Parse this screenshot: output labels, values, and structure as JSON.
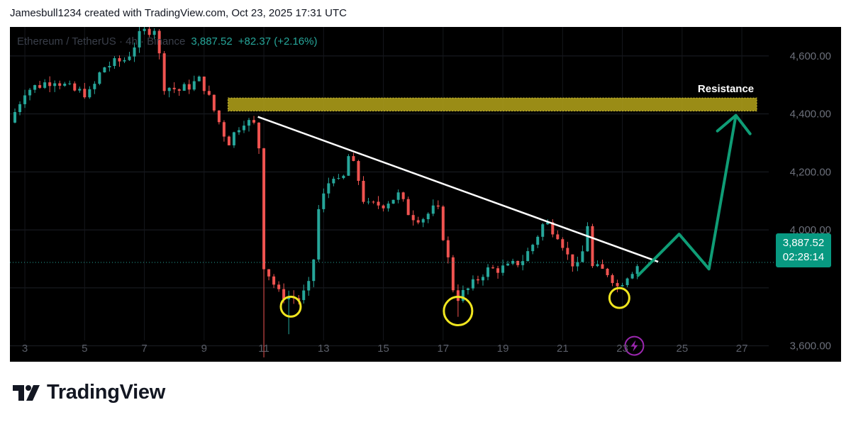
{
  "header": {
    "text": "Jamesbull1234 created with TradingView.com, Oct 23, 2025 17:31 UTC"
  },
  "legend": {
    "symbol": "Ethereum / TetherUS · 4h · Binance",
    "price": "3,887.52",
    "change": "+82.37 (+2.16%)"
  },
  "price_tag": {
    "price": "3,887.52",
    "countdown": "02:28:14"
  },
  "annotation": {
    "resistance_label": "Resistance"
  },
  "brand": {
    "name": "TradingView",
    "logo_icon": "tradingview-logo-icon"
  },
  "colors": {
    "up": "#26a69a",
    "down": "#ef5350",
    "resistance": "#b5a51a",
    "trendline": "#ffffff",
    "projection": "#0f9d76",
    "circle": "#f0e51f",
    "flash": "#9c27b0"
  },
  "chart_data": {
    "type": "candlestick",
    "title": "Ethereum / TetherUS · 4h · Binance",
    "x_ticks": [
      "3",
      "5",
      "7",
      "9",
      "11",
      "13",
      "15",
      "17",
      "19",
      "21",
      "23",
      "25",
      "27"
    ],
    "x_tick_days": [
      3,
      5,
      7,
      9,
      11,
      13,
      15,
      17,
      19,
      21,
      23,
      25,
      27
    ],
    "y_ticks": [
      "3,600.00",
      "4,000.00",
      "4,200.00",
      "4,400.00",
      "4,600.00"
    ],
    "y_tick_values": [
      3600,
      4000,
      4200,
      4400,
      4600
    ],
    "y_range": [
      3550,
      4700
    ],
    "x_range": [
      2.5,
      27.9
    ],
    "last_price": 3887.52,
    "candles_source": "approximate path read from the chart, October 2025, 4h interval",
    "price_path": [
      [
        2.5,
        4370
      ],
      [
        3.0,
        4480
      ],
      [
        4.0,
        4520
      ],
      [
        4.6,
        4480
      ],
      [
        5.2,
        4470
      ],
      [
        5.6,
        4560
      ],
      [
        6.4,
        4590
      ],
      [
        6.9,
        4680
      ],
      [
        7.4,
        4700
      ],
      [
        7.6,
        4500
      ],
      [
        8.2,
        4480
      ],
      [
        8.9,
        4520
      ],
      [
        9.3,
        4420
      ],
      [
        9.8,
        4300
      ],
      [
        10.3,
        4380
      ],
      [
        10.7,
        4360
      ],
      [
        10.9,
        4250
      ],
      [
        11.0,
        3880
      ],
      [
        11.5,
        3780
      ],
      [
        12.2,
        3760
      ],
      [
        12.6,
        3820
      ],
      [
        12.8,
        4060
      ],
      [
        13.3,
        4200
      ],
      [
        13.6,
        4140
      ],
      [
        13.8,
        4260
      ],
      [
        14.1,
        4200
      ],
      [
        14.4,
        4080
      ],
      [
        15.0,
        4090
      ],
      [
        15.5,
        4120
      ],
      [
        15.9,
        4050
      ],
      [
        16.3,
        4040
      ],
      [
        16.8,
        4080
      ],
      [
        17.2,
        3880
      ],
      [
        17.4,
        3760
      ],
      [
        17.9,
        3800
      ],
      [
        18.4,
        3860
      ],
      [
        19.2,
        3870
      ],
      [
        19.7,
        3900
      ],
      [
        20.0,
        3950
      ],
      [
        20.4,
        4030
      ],
      [
        20.9,
        3980
      ],
      [
        21.2,
        3900
      ],
      [
        21.6,
        3860
      ],
      [
        21.8,
        4050
      ],
      [
        22.0,
        3870
      ],
      [
        22.6,
        3850
      ],
      [
        22.8,
        3800
      ],
      [
        23.2,
        3850
      ],
      [
        23.6,
        3887.52
      ]
    ],
    "resistance_zone": {
      "low": 4410,
      "high": 4455,
      "from_day": 9.8,
      "to_day": 27.5,
      "label": "Resistance"
    },
    "trendline": {
      "from": [
        10.8,
        4390
      ],
      "to": [
        24.2,
        3890
      ]
    },
    "projection_path": [
      [
        23.5,
        3840
      ],
      [
        24.9,
        3985
      ],
      [
        25.9,
        3865
      ],
      [
        26.8,
        4395
      ]
    ],
    "highlighted_lows": [
      {
        "day": 11.9,
        "price": 3735
      },
      {
        "day": 17.5,
        "price": 3720
      },
      {
        "day": 22.9,
        "price": 3765
      }
    ]
  }
}
